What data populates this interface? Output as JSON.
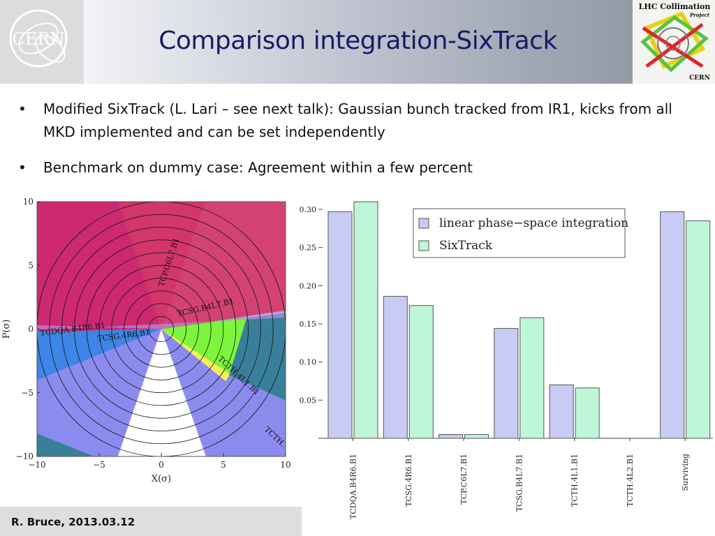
{
  "slide": {
    "title": "Comparison integration-SixTrack",
    "bullets": [
      "Modified SixTrack (L. Lari – see next talk): Gaussian bunch tracked from IR1, kicks from all MKD implemented and can be set independently",
      "Benchmark on dummy case: Agreement within a few percent"
    ],
    "bullet_glyph": "•",
    "footer": "R. Bruce, 2013.03.12",
    "logos": {
      "cern": {
        "text": "CERN",
        "icon": "cern-logo-icon"
      },
      "lhc": {
        "line1": "LHC Collimation",
        "line2": "Project",
        "line3": "CERN",
        "icon": "lhc-collimation-logo-icon"
      }
    }
  },
  "chart_data": [
    {
      "type": "contour",
      "xlabel": "X(σ)",
      "ylabel": "P(σ)",
      "xlim": [
        -10,
        10
      ],
      "ylim": [
        -10,
        10
      ],
      "xticks": [
        -10,
        -5,
        0,
        5,
        10
      ],
      "yticks": [
        -10,
        -5,
        0,
        5,
        10
      ],
      "circle_radii": [
        1,
        2,
        3,
        4,
        5,
        6,
        7,
        8,
        9,
        10
      ],
      "region_labels": [
        {
          "text": "TCP.C6L7.B1",
          "x": 0.8,
          "y": 5.2,
          "angle": -72
        },
        {
          "text": "TCSG.B4L7.B1",
          "x": 3.6,
          "y": 1.5,
          "angle": -13
        },
        {
          "text": "TCDQA.B4R6.B1",
          "x": -7.1,
          "y": -0.2,
          "angle": -7
        },
        {
          "text": "TCSG.4R6.B1",
          "x": -3.0,
          "y": -0.7,
          "angle": -7
        },
        {
          "text": "TCTH.4L1.B1",
          "x": 6.1,
          "y": -3.8,
          "angle": 43
        },
        {
          "text": "TCTH.",
          "x": 9.0,
          "y": -8.6,
          "angle": 43
        }
      ],
      "colors": {
        "crimson": "#d2366a",
        "magenta": "#c71f78",
        "blue": "#3d85e6",
        "periwinkle": "#8b8bef",
        "teal": "#3a7f9a",
        "green": "#7df53d",
        "yellow": "#f5ef5a",
        "white": "#ffffff"
      }
    },
    {
      "type": "bar",
      "categories": [
        "TCDQA.B4R6.B1",
        "TCSG.4R6.B1",
        "TCP.C6L7.B1",
        "TCSG.B4L7.B1",
        "TCTH.4L1.B1",
        "TCTH.4L2.B1",
        "Surviving"
      ],
      "series": [
        {
          "name": "linear phase−space integration",
          "values": [
            0.297,
            0.186,
            0.005,
            0.144,
            0.07,
            0.0,
            0.297
          ],
          "color": "#c8ccf4"
        },
        {
          "name": "SixTrack",
          "values": [
            0.31,
            0.174,
            0.005,
            0.158,
            0.066,
            0.0,
            0.285
          ],
          "color": "#bff6d8"
        }
      ],
      "yticks": [
        0.05,
        0.1,
        0.15,
        0.2,
        0.25,
        0.3
      ],
      "ytick_labels": [
        "0.05",
        "0.10",
        "0.15",
        "0.20",
        "0.25",
        "0.30"
      ],
      "ylim": [
        0,
        0.31
      ],
      "legend_position": "top-center"
    }
  ]
}
